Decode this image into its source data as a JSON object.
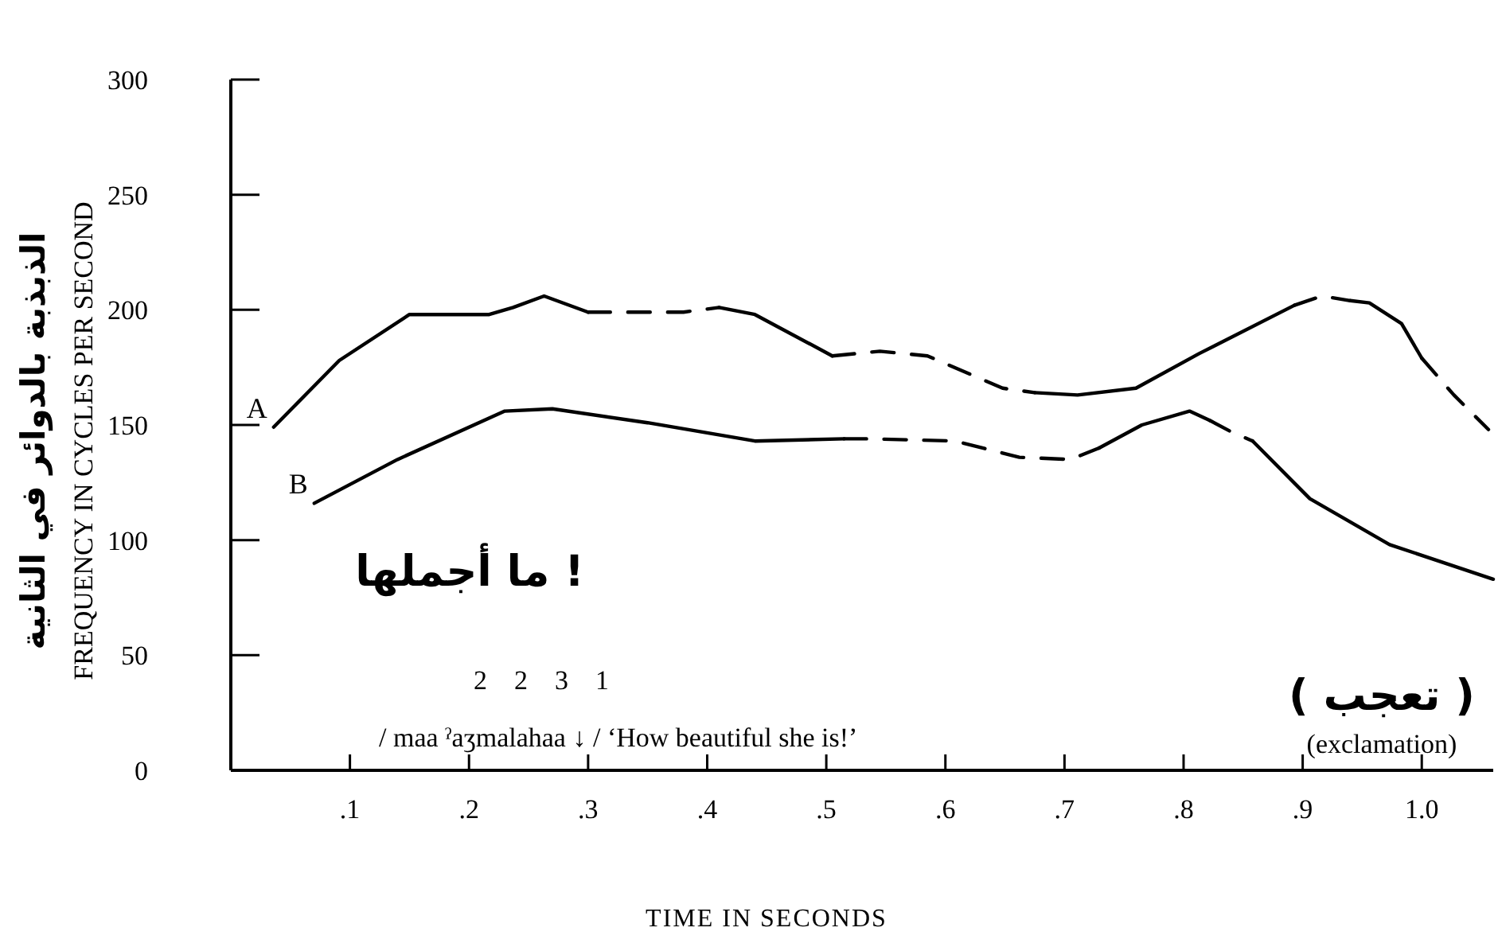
{
  "chart_data": {
    "type": "line",
    "xlabel": "TIME IN SECONDS",
    "ylabel": "الذبذبة بالدوائر في الثانية\nFREQUENCY IN CYCLES PER SECOND",
    "xlim": [
      0,
      1.06
    ],
    "ylim": [
      0,
      300
    ],
    "xticks": [
      {
        "value": 0.1,
        "label": ".1"
      },
      {
        "value": 0.2,
        "label": ".2"
      },
      {
        "value": 0.3,
        "label": ".3"
      },
      {
        "value": 0.4,
        "label": ".4"
      },
      {
        "value": 0.5,
        "label": ".5"
      },
      {
        "value": 0.6,
        "label": ".6"
      },
      {
        "value": 0.7,
        "label": ".7"
      },
      {
        "value": 0.8,
        "label": ".8"
      },
      {
        "value": 0.9,
        "label": ".9"
      },
      {
        "value": 1.0,
        "label": "1.0"
      }
    ],
    "yticks": [
      0,
      50,
      100,
      150,
      200,
      250,
      300
    ],
    "grid": false,
    "marker": "none",
    "series": [
      {
        "name": "A",
        "color": "#000000",
        "line_style": "solid",
        "x": [
          0.036,
          0.051,
          0.091,
          0.15,
          0.217,
          0.237,
          0.263,
          0.3
        ],
        "values": [
          149,
          157,
          178,
          198,
          198,
          201,
          206,
          199
        ]
      },
      {
        "color": "#000000",
        "line_style": "dashed",
        "x": [
          0.3,
          0.34,
          0.38,
          0.41
        ],
        "values": [
          199,
          199,
          199,
          201
        ]
      },
      {
        "color": "#000000",
        "line_style": "solid",
        "x": [
          0.41,
          0.44,
          0.505
        ],
        "values": [
          201,
          198,
          180
        ]
      },
      {
        "color": "#000000",
        "line_style": "dashed",
        "x": [
          0.505,
          0.545,
          0.585,
          0.648,
          0.675
        ],
        "values": [
          180,
          182,
          180,
          166,
          164
        ]
      },
      {
        "color": "#000000",
        "line_style": "solid",
        "x": [
          0.675,
          0.711,
          0.76,
          0.813,
          0.893
        ],
        "values": [
          164,
          163,
          166,
          181,
          202
        ]
      },
      {
        "color": "#000000",
        "line_style": "dashed",
        "x": [
          0.893,
          0.916,
          0.94
        ],
        "values": [
          202,
          206,
          204
        ]
      },
      {
        "color": "#000000",
        "line_style": "solid",
        "x": [
          0.94,
          0.956,
          0.983,
          1.0
        ],
        "values": [
          204,
          203,
          194,
          179
        ]
      },
      {
        "color": "#000000",
        "line_style": "dashed",
        "x": [
          1.0,
          1.027,
          1.056
        ],
        "values": [
          179,
          163,
          148
        ]
      },
      {
        "name": "B",
        "color": "#000000",
        "line_style": "solid",
        "x": [
          0.07,
          0.14,
          0.23,
          0.27,
          0.35,
          0.44,
          0.515
        ],
        "values": [
          116,
          135,
          156,
          157,
          151,
          143,
          144
        ]
      },
      {
        "color": "#000000",
        "line_style": "dashed",
        "x": [
          0.515,
          0.537,
          0.608,
          0.662,
          0.705,
          0.729
        ],
        "values": [
          144,
          144,
          143,
          136,
          135,
          140
        ]
      },
      {
        "color": "#000000",
        "line_style": "solid",
        "x": [
          0.729,
          0.765,
          0.805,
          0.822
        ],
        "values": [
          140,
          150,
          156,
          152
        ]
      },
      {
        "color": "#000000",
        "line_style": "dashed",
        "x": [
          0.822,
          0.84,
          0.858
        ],
        "values": [
          152,
          147,
          143
        ]
      },
      {
        "color": "#000000",
        "line_style": "solid",
        "x": [
          0.858,
          0.906,
          0.973,
          1.06
        ],
        "values": [
          143,
          118,
          98,
          83
        ]
      }
    ],
    "annotations": [
      "ما أجملها !",
      "2    2    3    1",
      "/ maa ˀaʒmalahaa  ↓   /  ‘How beautiful she is!’",
      "( تعجب )",
      "(exclamation)"
    ]
  }
}
